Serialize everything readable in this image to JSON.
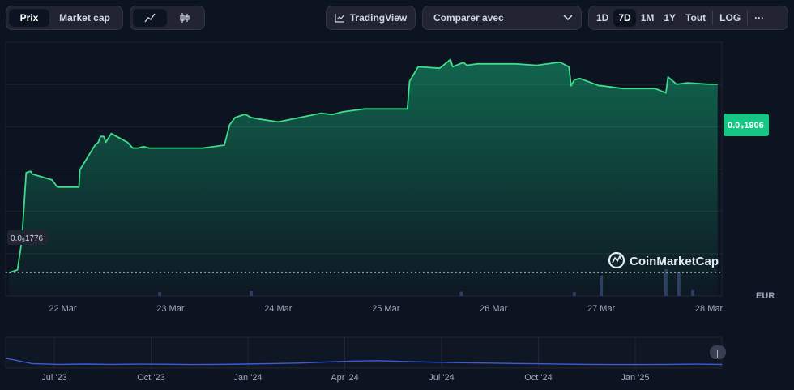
{
  "toolbar": {
    "metric_tabs": [
      {
        "label": "Prix",
        "active": true
      },
      {
        "label": "Market cap",
        "active": false
      }
    ],
    "chart_style": [
      {
        "icon": "line-chart-icon",
        "active": true
      },
      {
        "icon": "candlestick-icon",
        "active": false
      }
    ],
    "tradingview_label": "TradingView",
    "compare_label": "Comparer avec",
    "ranges": [
      {
        "label": "1D",
        "active": false
      },
      {
        "label": "7D",
        "active": true
      },
      {
        "label": "1M",
        "active": false
      },
      {
        "label": "1Y",
        "active": false
      },
      {
        "label": "Tout",
        "active": false
      }
    ],
    "log_label": "LOG",
    "more_label": "···"
  },
  "watermark": "CoinMarketCap",
  "currency": "EUR",
  "colors": {
    "line": "#3fdc8c",
    "badge": "#16c784",
    "volume": "#2c3b62",
    "navigator_line": "#3b5bdb"
  },
  "chart_data": {
    "type": "area",
    "x_ticks": [
      "22 Mar",
      "23 Mar",
      "24 Mar",
      "25 Mar",
      "26 Mar",
      "27 Mar",
      "28 Mar"
    ],
    "start_label": "0.0₉1776",
    "current_label": "0.0₉1906",
    "y_start": 1.776e-10,
    "y_current": 1.906e-10,
    "x": [
      21.5,
      21.58,
      21.62,
      21.66,
      21.7,
      21.72,
      21.9,
      21.95,
      22.02,
      22.15,
      22.16,
      22.3,
      22.33,
      22.35,
      22.38,
      22.4,
      22.45,
      22.6,
      22.65,
      22.7,
      22.75,
      22.8,
      22.9,
      23.0,
      23.3,
      23.5,
      23.55,
      23.6,
      23.68,
      23.7,
      23.75,
      23.82,
      24.0,
      24.2,
      24.4,
      24.5,
      24.6,
      24.8,
      25.0,
      25.2,
      25.22,
      25.3,
      25.5,
      25.6,
      25.62,
      25.72,
      25.75,
      25.85,
      26.0,
      26.2,
      26.4,
      26.6,
      26.62,
      26.7,
      26.72,
      26.75,
      26.8,
      26.98,
      27.0,
      27.2,
      27.4,
      27.5,
      27.6,
      27.62,
      27.7,
      27.8,
      28.0,
      28.08
    ],
    "y": [
      1.776e-10,
      1.778e-10,
      1.798e-10,
      1.845e-10,
      1.846e-10,
      1.844e-10,
      1.84e-10,
      1.835e-10,
      1.835e-10,
      1.835e-10,
      1.847e-10,
      1.864e-10,
      1.866e-10,
      1.87e-10,
      1.87e-10,
      1.866e-10,
      1.872e-10,
      1.866e-10,
      1.862e-10,
      1.862e-10,
      1.863e-10,
      1.862e-10,
      1.862e-10,
      1.862e-10,
      1.862e-10,
      1.864e-10,
      1.878e-10,
      1.883e-10,
      1.885e-10,
      1.885e-10,
      1.883e-10,
      1.882e-10,
      1.88e-10,
      1.883e-10,
      1.886e-10,
      1.885e-10,
      1.887e-10,
      1.889e-10,
      1.889e-10,
      1.889e-10,
      1.908e-10,
      1.918e-10,
      1.917e-10,
      1.923e-10,
      1.918e-10,
      1.921e-10,
      1.919e-10,
      1.92e-10,
      1.92e-10,
      1.92e-10,
      1.919e-10,
      1.921e-10,
      1.921e-10,
      1.918e-10,
      1.905e-10,
      1.909e-10,
      1.91e-10,
      1.905e-10,
      1.905e-10,
      1.903e-10,
      1.903e-10,
      1.903e-10,
      1.9e-10,
      1.911e-10,
      1.906e-10,
      1.907e-10,
      1.906e-10,
      1.906e-10
    ],
    "xlim": [
      21.47,
      28.12
    ],
    "ylim": [
      1.76e-10,
      1.935e-10
    ],
    "volume": {
      "x": [
        22.9,
        23.75,
        25.7,
        26.75,
        27.0,
        27.6,
        27.72,
        27.85
      ],
      "values": [
        0.08,
        0.1,
        0.09,
        0.08,
        0.42,
        0.55,
        0.48,
        0.12
      ]
    },
    "navigator": {
      "x_ticks": [
        "Jul '23",
        "Oct '23",
        "Jan '24",
        "Apr '24",
        "Jul '24",
        "Oct '24",
        "Jan '25"
      ],
      "values": [
        0.85,
        0.3,
        0.22,
        0.25,
        0.22,
        0.24,
        0.23,
        0.2,
        0.22,
        0.25,
        0.3,
        0.35,
        0.45,
        0.55,
        0.6,
        0.52,
        0.45,
        0.4,
        0.36,
        0.32,
        0.28,
        0.24,
        0.22,
        0.2,
        0.2,
        0.22,
        0.24,
        0.22
      ]
    },
    "grid": true
  }
}
